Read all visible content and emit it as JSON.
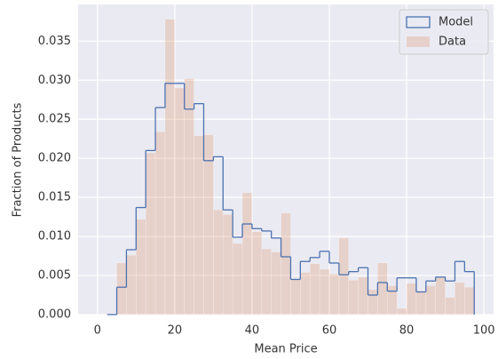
{
  "chart_data": {
    "type": "histogram",
    "x_label": "Mean Price",
    "y_label": "Fraction of Products",
    "bins": [
      2.5,
      5,
      7.5,
      10,
      12.5,
      15,
      17.5,
      20,
      22.5,
      25,
      27.5,
      30,
      32.5,
      35,
      37.5,
      40,
      42.5,
      45,
      47.5,
      50,
      52.5,
      55,
      57.5,
      60,
      62.5,
      65,
      67.5,
      70,
      72.5,
      75,
      77.5,
      80,
      82.5,
      85,
      87.5,
      90,
      92.5,
      95,
      97.5
    ],
    "series": [
      {
        "name": "Model",
        "color": "#4c72b0",
        "style": "step",
        "values": [
          0,
          0.0035,
          0.0083,
          0.0137,
          0.021,
          0.0265,
          0.0296,
          0.0296,
          0.0263,
          0.027,
          0.0197,
          0.0202,
          0.0134,
          0.0099,
          0.0116,
          0.011,
          0.0107,
          0.0098,
          0.0074,
          0.0045,
          0.0068,
          0.0073,
          0.0081,
          0.0066,
          0.0051,
          0.0055,
          0.006,
          0.0025,
          0.0041,
          0.003,
          0.0047,
          0.0047,
          0.0029,
          0.0043,
          0.0048,
          0.0043,
          0.0068,
          0.0055
        ]
      },
      {
        "name": "Data",
        "color": "#dd8452",
        "alpha": 0.25,
        "style": "filled",
        "values": [
          0,
          0.0066,
          0.0076,
          0.0122,
          0.0207,
          0.0234,
          0.0378,
          0.029,
          0.0302,
          0.0229,
          0.023,
          0.0134,
          0.0128,
          0.0091,
          0.0156,
          0.0106,
          0.0084,
          0.008,
          0.013,
          0.0046,
          0.0054,
          0.0065,
          0.0058,
          0.0052,
          0.0098,
          0.0044,
          0.0048,
          0.0032,
          0.0066,
          0.0037,
          0.0008,
          0.004,
          0.003,
          0.0037,
          0.0048,
          0.0022,
          0.0041,
          0.0035
        ]
      }
    ],
    "xlim": [
      -5,
      102.5
    ],
    "ylim": [
      0,
      0.0397
    ],
    "xticks": [
      0,
      20,
      40,
      60,
      80,
      100
    ],
    "yticks": [
      {
        "value": 0,
        "label": "0.000"
      },
      0.005,
      {
        "value": 0.01,
        "label": "0.010"
      },
      0.015,
      {
        "value": 0.02,
        "label": "0.020"
      },
      0.025,
      {
        "value": 0.03,
        "label": "0.030"
      },
      0.035
    ],
    "grid": true,
    "legend": "upper right"
  }
}
